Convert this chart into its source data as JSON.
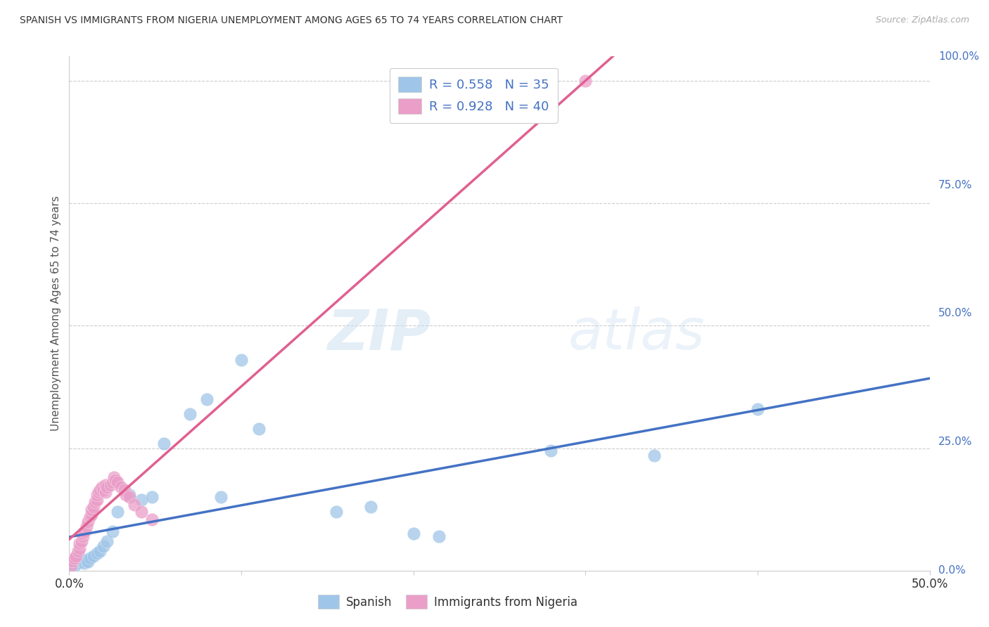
{
  "title": "SPANISH VS IMMIGRANTS FROM NIGERIA UNEMPLOYMENT AMONG AGES 65 TO 74 YEARS CORRELATION CHART",
  "source": "Source: ZipAtlas.com",
  "ylabel": "Unemployment Among Ages 65 to 74 years",
  "ylabel_right_ticks": [
    "100.0%",
    "75.0%",
    "50.0%",
    "25.0%",
    "0.0%"
  ],
  "ylabel_right_values": [
    1.0,
    0.75,
    0.5,
    0.25,
    0.0
  ],
  "legend_label_spanish": "Spanish",
  "legend_label_nigeria": "Immigrants from Nigeria",
  "spanish_color": "#9fc5e8",
  "nigeria_color": "#ea9ec8",
  "spanish_line_color": "#4472C4",
  "nigeria_line_color": "#e06090",
  "watermark_zip": "ZIP",
  "watermark_atlas": "atlas",
  "xlim": [
    0.0,
    0.5
  ],
  "ylim": [
    0.0,
    1.05
  ],
  "background_color": "#ffffff",
  "grid_color": "#cccccc",
  "spanish_x": [
    0.001,
    0.002,
    0.003,
    0.004,
    0.005,
    0.006,
    0.007,
    0.008,
    0.009,
    0.01,
    0.011,
    0.012,
    0.014,
    0.016,
    0.018,
    0.02,
    0.022,
    0.025,
    0.028,
    0.035,
    0.042,
    0.048,
    0.055,
    0.07,
    0.08,
    0.1,
    0.11,
    0.155,
    0.175,
    0.2,
    0.215,
    0.28,
    0.34,
    0.4,
    0.088
  ],
  "spanish_y": [
    0.02,
    0.015,
    0.01,
    0.02,
    0.015,
    0.025,
    0.018,
    0.022,
    0.015,
    0.02,
    0.018,
    0.025,
    0.03,
    0.035,
    0.04,
    0.05,
    0.06,
    0.08,
    0.12,
    0.155,
    0.145,
    0.15,
    0.26,
    0.32,
    0.35,
    0.43,
    0.29,
    0.12,
    0.13,
    0.075,
    0.07,
    0.245,
    0.235,
    0.33,
    0.15
  ],
  "nigeria_x": [
    0.001,
    0.002,
    0.003,
    0.004,
    0.005,
    0.006,
    0.006,
    0.007,
    0.008,
    0.008,
    0.009,
    0.01,
    0.011,
    0.012,
    0.013,
    0.013,
    0.014,
    0.015,
    0.016,
    0.016,
    0.017,
    0.018,
    0.019,
    0.02,
    0.021,
    0.021,
    0.022,
    0.024,
    0.025,
    0.026,
    0.027,
    0.028,
    0.03,
    0.032,
    0.033,
    0.035,
    0.038,
    0.042,
    0.048,
    0.3
  ],
  "nigeria_y": [
    0.01,
    0.02,
    0.025,
    0.03,
    0.04,
    0.045,
    0.055,
    0.06,
    0.07,
    0.075,
    0.08,
    0.09,
    0.1,
    0.11,
    0.115,
    0.125,
    0.13,
    0.14,
    0.145,
    0.155,
    0.16,
    0.165,
    0.17,
    0.165,
    0.16,
    0.175,
    0.17,
    0.175,
    0.18,
    0.19,
    0.185,
    0.18,
    0.17,
    0.165,
    0.155,
    0.15,
    0.135,
    0.12,
    0.105,
    1.0
  ]
}
